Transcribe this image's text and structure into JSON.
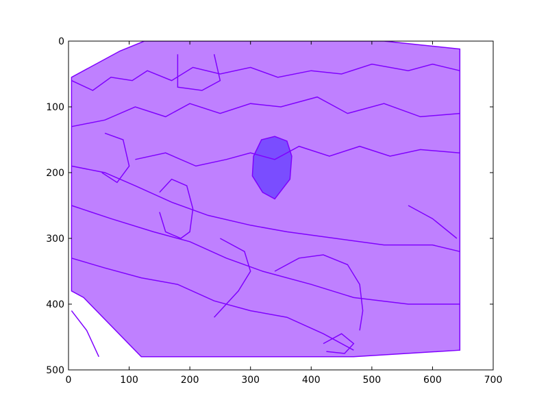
{
  "colors": {
    "fill": "#bf80ff",
    "edge": "#7f00ff",
    "highlight_fill": "#7a4dff",
    "axes": "#000000"
  },
  "x_ticks": [
    "0",
    "100",
    "200",
    "300",
    "400",
    "500",
    "600",
    "700"
  ],
  "y_ticks": [
    "0",
    "100",
    "200",
    "300",
    "400",
    "500"
  ],
  "chart_data": {
    "type": "scatter",
    "xlim": [
      0,
      700
    ],
    "ylim": [
      500,
      0
    ],
    "y_inverted": true,
    "grid": false,
    "x_ticks": [
      0,
      100,
      200,
      300,
      400,
      500,
      600,
      700
    ],
    "y_ticks": [
      0,
      100,
      200,
      300,
      400,
      500
    ],
    "regions": [
      {
        "name": "scene-mask",
        "points": [
          [
            5,
            55
          ],
          [
            85,
            15
          ],
          [
            125,
            0
          ],
          [
            520,
            0
          ],
          [
            645,
            12
          ],
          [
            645,
            470
          ],
          [
            470,
            480
          ],
          [
            120,
            480
          ],
          [
            25,
            390
          ],
          [
            5,
            380
          ]
        ]
      },
      {
        "name": "highlighted-region",
        "points": [
          [
            305,
            175
          ],
          [
            318,
            150
          ],
          [
            340,
            145
          ],
          [
            360,
            152
          ],
          [
            368,
            175
          ],
          [
            365,
            210
          ],
          [
            340,
            240
          ],
          [
            320,
            230
          ],
          [
            303,
            205
          ]
        ]
      }
    ],
    "outlines": [
      [
        [
          5,
          60
        ],
        [
          40,
          75
        ],
        [
          70,
          55
        ],
        [
          105,
          60
        ],
        [
          130,
          45
        ],
        [
          170,
          60
        ],
        [
          205,
          40
        ],
        [
          250,
          50
        ],
        [
          300,
          40
        ],
        [
          345,
          55
        ],
        [
          400,
          45
        ],
        [
          450,
          50
        ],
        [
          500,
          35
        ],
        [
          560,
          45
        ],
        [
          600,
          35
        ],
        [
          645,
          45
        ]
      ],
      [
        [
          5,
          130
        ],
        [
          60,
          120
        ],
        [
          110,
          100
        ],
        [
          160,
          115
        ],
        [
          200,
          95
        ],
        [
          250,
          110
        ],
        [
          300,
          95
        ],
        [
          350,
          100
        ],
        [
          410,
          85
        ],
        [
          460,
          110
        ],
        [
          520,
          95
        ],
        [
          580,
          115
        ],
        [
          645,
          110
        ]
      ],
      [
        [
          5,
          190
        ],
        [
          60,
          200
        ],
        [
          110,
          220
        ],
        [
          170,
          245
        ],
        [
          230,
          265
        ],
        [
          300,
          280
        ],
        [
          360,
          290
        ],
        [
          440,
          300
        ],
        [
          520,
          310
        ],
        [
          600,
          310
        ],
        [
          645,
          320
        ]
      ],
      [
        [
          5,
          250
        ],
        [
          70,
          270
        ],
        [
          140,
          290
        ],
        [
          200,
          305
        ],
        [
          260,
          330
        ],
        [
          320,
          350
        ],
        [
          400,
          370
        ],
        [
          470,
          390
        ],
        [
          560,
          400
        ],
        [
          645,
          400
        ]
      ],
      [
        [
          5,
          330
        ],
        [
          60,
          345
        ],
        [
          120,
          360
        ],
        [
          180,
          370
        ],
        [
          240,
          395
        ],
        [
          300,
          410
        ],
        [
          360,
          420
        ],
        [
          420,
          445
        ],
        [
          470,
          470
        ]
      ],
      [
        [
          110,
          180
        ],
        [
          160,
          170
        ],
        [
          210,
          190
        ],
        [
          260,
          180
        ],
        [
          300,
          170
        ],
        [
          340,
          180
        ],
        [
          380,
          160
        ],
        [
          430,
          175
        ],
        [
          480,
          160
        ],
        [
          530,
          175
        ],
        [
          580,
          165
        ],
        [
          645,
          170
        ]
      ],
      [
        [
          250,
          300
        ],
        [
          290,
          320
        ],
        [
          300,
          350
        ],
        [
          280,
          380
        ],
        [
          260,
          400
        ],
        [
          240,
          420
        ]
      ],
      [
        [
          340,
          350
        ],
        [
          380,
          330
        ],
        [
          420,
          325
        ],
        [
          460,
          340
        ],
        [
          480,
          370
        ],
        [
          485,
          410
        ],
        [
          480,
          440
        ]
      ],
      [
        [
          150,
          230
        ],
        [
          170,
          210
        ],
        [
          195,
          220
        ],
        [
          205,
          255
        ],
        [
          200,
          290
        ],
        [
          185,
          300
        ],
        [
          160,
          290
        ],
        [
          150,
          260
        ]
      ],
      [
        [
          420,
          460
        ],
        [
          450,
          445
        ],
        [
          470,
          460
        ],
        [
          455,
          475
        ],
        [
          425,
          472
        ]
      ],
      [
        [
          5,
          410
        ],
        [
          30,
          440
        ],
        [
          50,
          480
        ]
      ],
      [
        [
          560,
          250
        ],
        [
          600,
          270
        ],
        [
          640,
          300
        ]
      ],
      [
        [
          180,
          20
        ],
        [
          180,
          70
        ],
        [
          220,
          75
        ],
        [
          250,
          60
        ],
        [
          240,
          20
        ]
      ],
      [
        [
          60,
          140
        ],
        [
          90,
          150
        ],
        [
          100,
          190
        ],
        [
          80,
          215
        ],
        [
          55,
          200
        ]
      ]
    ]
  }
}
